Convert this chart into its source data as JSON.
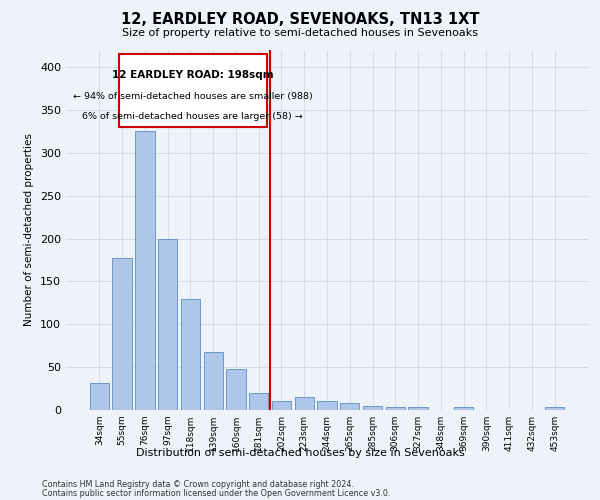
{
  "title": "12, EARDLEY ROAD, SEVENOAKS, TN13 1XT",
  "subtitle": "Size of property relative to semi-detached houses in Sevenoaks",
  "xlabel_bottom": "Distribution of semi-detached houses by size in Sevenoaks",
  "ylabel": "Number of semi-detached properties",
  "categories": [
    "34sqm",
    "55sqm",
    "76sqm",
    "97sqm",
    "118sqm",
    "139sqm",
    "160sqm",
    "181sqm",
    "202sqm",
    "223sqm",
    "244sqm",
    "265sqm",
    "285sqm",
    "306sqm",
    "327sqm",
    "348sqm",
    "369sqm",
    "390sqm",
    "411sqm",
    "432sqm",
    "453sqm"
  ],
  "values": [
    32,
    177,
    325,
    199,
    130,
    68,
    48,
    20,
    11,
    15,
    10,
    8,
    5,
    4,
    4,
    0,
    3,
    0,
    0,
    0,
    3
  ],
  "bar_color": "#aec6e8",
  "bar_edge_color": "#5a8fc2",
  "grid_color": "#d0d8e8",
  "annotation_box_text": "12 EARDLEY ROAD: 198sqm",
  "annotation_line1": "← 94% of semi-detached houses are smaller (988)",
  "annotation_line2": "6% of semi-detached houses are larger (58) →",
  "vline_color": "#cc0000",
  "annotation_box_color": "#cc0000",
  "annotation_box_bg": "#ffffff",
  "ylim": [
    0,
    420
  ],
  "yticks": [
    0,
    50,
    100,
    150,
    200,
    250,
    300,
    350,
    400
  ],
  "footnote1": "Contains HM Land Registry data © Crown copyright and database right 2024.",
  "footnote2": "Contains public sector information licensed under the Open Government Licence v3.0.",
  "bg_color": "#eef2f9"
}
